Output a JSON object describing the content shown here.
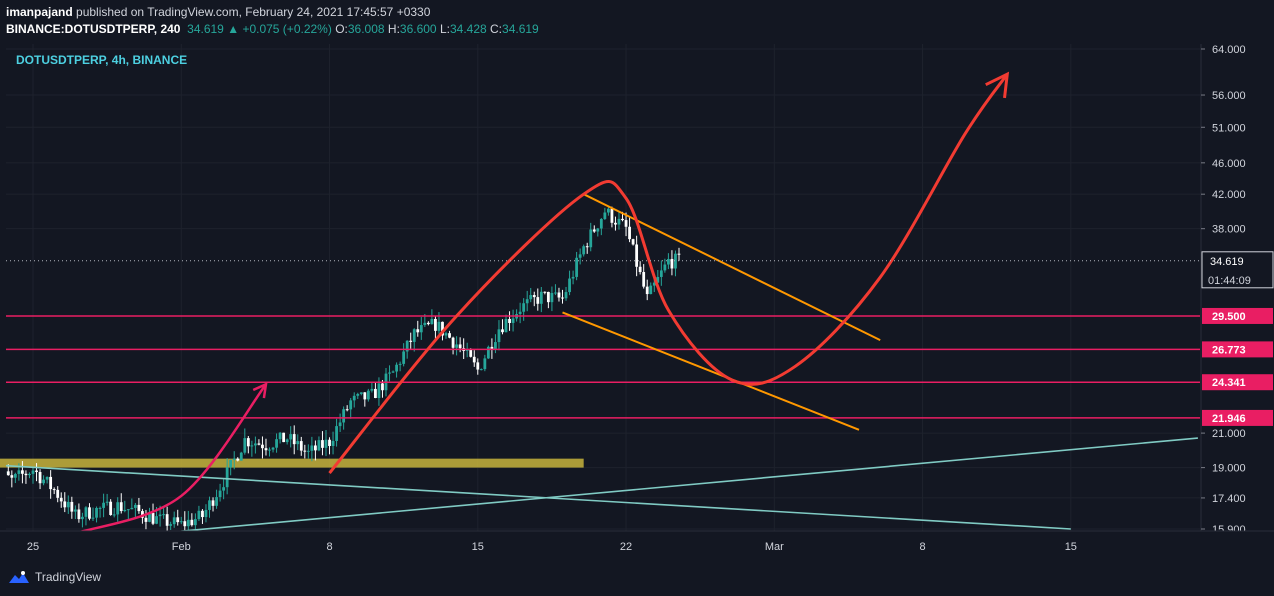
{
  "header": {
    "author": "imanpajand",
    "published_text": "published on TradingView.com, February 24, 2021 17:45:57 +0330",
    "symbol": "BINANCE:DOTUSDTPERP, 240",
    "last": "34.619",
    "change_arrow": "▲",
    "change": "+0.075 (+0.22%)",
    "o_label": "O:",
    "o": "36.008",
    "h_label": "H:",
    "h": "36.600",
    "l_label": "L:",
    "l": "34.428",
    "c_label": "C:",
    "c": "34.619"
  },
  "legend": "DOTUSDTPERP, 4h, BINANCE",
  "footer": {
    "brand": "TradingView",
    "logo_icon": "tradingview-logo-icon"
  },
  "colors": {
    "background": "#131722",
    "candle_up": "#26a69a",
    "candle_down": "#ffffff",
    "level_line": "#e91e63",
    "trend_line": "#80cbc4",
    "channel": "#ff9800",
    "path": "#f23b32",
    "zone": "#c8b43c"
  },
  "chart_data": {
    "type": "candlestick",
    "symbol": "DOTUSDTPERP",
    "interval": "4h",
    "exchange": "BINANCE",
    "y_scale": "log",
    "y_ticks": [
      "64.000",
      "56.000",
      "51.000",
      "46.000",
      "42.000",
      "38.000",
      "21.000",
      "19.000",
      "17.400",
      "15.900"
    ],
    "x_ticks": [
      "25",
      "Feb",
      "8",
      "15",
      "22",
      "Mar",
      "8",
      "15"
    ],
    "last_price": "34.619",
    "countdown": "01:44:09",
    "horizontal_levels": [
      "29.500",
      "26.773",
      "24.341",
      "21.946"
    ],
    "price_path": [
      {
        "date": "2021-01-23",
        "price": 19.0
      },
      {
        "date": "2021-01-24",
        "price": 18.3
      },
      {
        "date": "2021-01-25",
        "price": 18.9
      },
      {
        "date": "2021-01-26",
        "price": 17.8
      },
      {
        "date": "2021-01-27",
        "price": 16.5
      },
      {
        "date": "2021-01-28",
        "price": 16.8
      },
      {
        "date": "2021-01-29",
        "price": 17.0
      },
      {
        "date": "2021-01-30",
        "price": 16.7
      },
      {
        "date": "2021-01-31",
        "price": 16.3
      },
      {
        "date": "2021-02-01",
        "price": 16.1
      },
      {
        "date": "2021-02-02",
        "price": 16.5
      },
      {
        "date": "2021-02-03",
        "price": 18.3
      },
      {
        "date": "2021-02-04",
        "price": 20.6
      },
      {
        "date": "2021-02-05",
        "price": 20.3
      },
      {
        "date": "2021-02-06",
        "price": 20.7
      },
      {
        "date": "2021-02-07",
        "price": 19.8
      },
      {
        "date": "2021-02-08",
        "price": 20.5
      },
      {
        "date": "2021-02-09",
        "price": 23.0
      },
      {
        "date": "2021-02-10",
        "price": 23.4
      },
      {
        "date": "2021-02-11",
        "price": 25.0
      },
      {
        "date": "2021-02-12",
        "price": 28.0
      },
      {
        "date": "2021-02-13",
        "price": 28.8
      },
      {
        "date": "2021-02-14",
        "price": 27.2
      },
      {
        "date": "2021-02-15",
        "price": 25.2
      },
      {
        "date": "2021-02-16",
        "price": 28.5
      },
      {
        "date": "2021-02-17",
        "price": 30.2
      },
      {
        "date": "2021-02-18",
        "price": 31.2
      },
      {
        "date": "2021-02-19",
        "price": 31.0
      },
      {
        "date": "2021-02-20",
        "price": 36.0
      },
      {
        "date": "2021-02-21",
        "price": 40.0
      },
      {
        "date": "2021-02-22",
        "price": 38.0
      },
      {
        "date": "2021-02-23",
        "price": 31.0
      },
      {
        "date": "2021-02-24",
        "price": 34.6
      }
    ],
    "annotations": {
      "yellow_zone": {
        "from_date": "2021-01-21",
        "to_date": "2021-02-20",
        "low": 19.0,
        "high": 19.5
      },
      "trendlines": [
        {
          "from": {
            "date": "2021-01-21",
            "price": 19.3
          },
          "to": {
            "date": "2021-03-15",
            "price": 15.9
          }
        },
        {
          "from": {
            "date": "2021-02-01",
            "price": 15.8
          },
          "to": {
            "date": "2021-03-21",
            "price": 20.7
          }
        }
      ],
      "channel_lines": [
        {
          "from": {
            "date": "2021-02-20",
            "price": 42.0
          },
          "to": {
            "date": "2021-03-06",
            "price": 27.5
          }
        },
        {
          "from": {
            "date": "2021-02-19",
            "price": 29.8
          },
          "to": {
            "date": "2021-03-05",
            "price": 21.2
          }
        }
      ],
      "arc": [
        {
          "date": "2021-02-08",
          "price": 18.7
        },
        {
          "date": "2021-02-14",
          "price": 29.5
        },
        {
          "date": "2021-02-20",
          "price": 42.0
        },
        {
          "date": "2021-02-22",
          "price": 41.5
        },
        {
          "date": "2021-02-24",
          "price": 30.0
        },
        {
          "date": "2021-02-27",
          "price": 24.5
        },
        {
          "date": "2021-03-02",
          "price": 25.5
        },
        {
          "date": "2021-03-06",
          "price": 33.0
        },
        {
          "date": "2021-03-10",
          "price": 50.0
        },
        {
          "date": "2021-03-12",
          "price": 59.5
        }
      ],
      "small_arrow": [
        {
          "date": "2021-01-27",
          "price": 15.7
        },
        {
          "date": "2021-02-01",
          "price": 17.5
        },
        {
          "date": "2021-02-05",
          "price": 24.2
        }
      ]
    }
  }
}
